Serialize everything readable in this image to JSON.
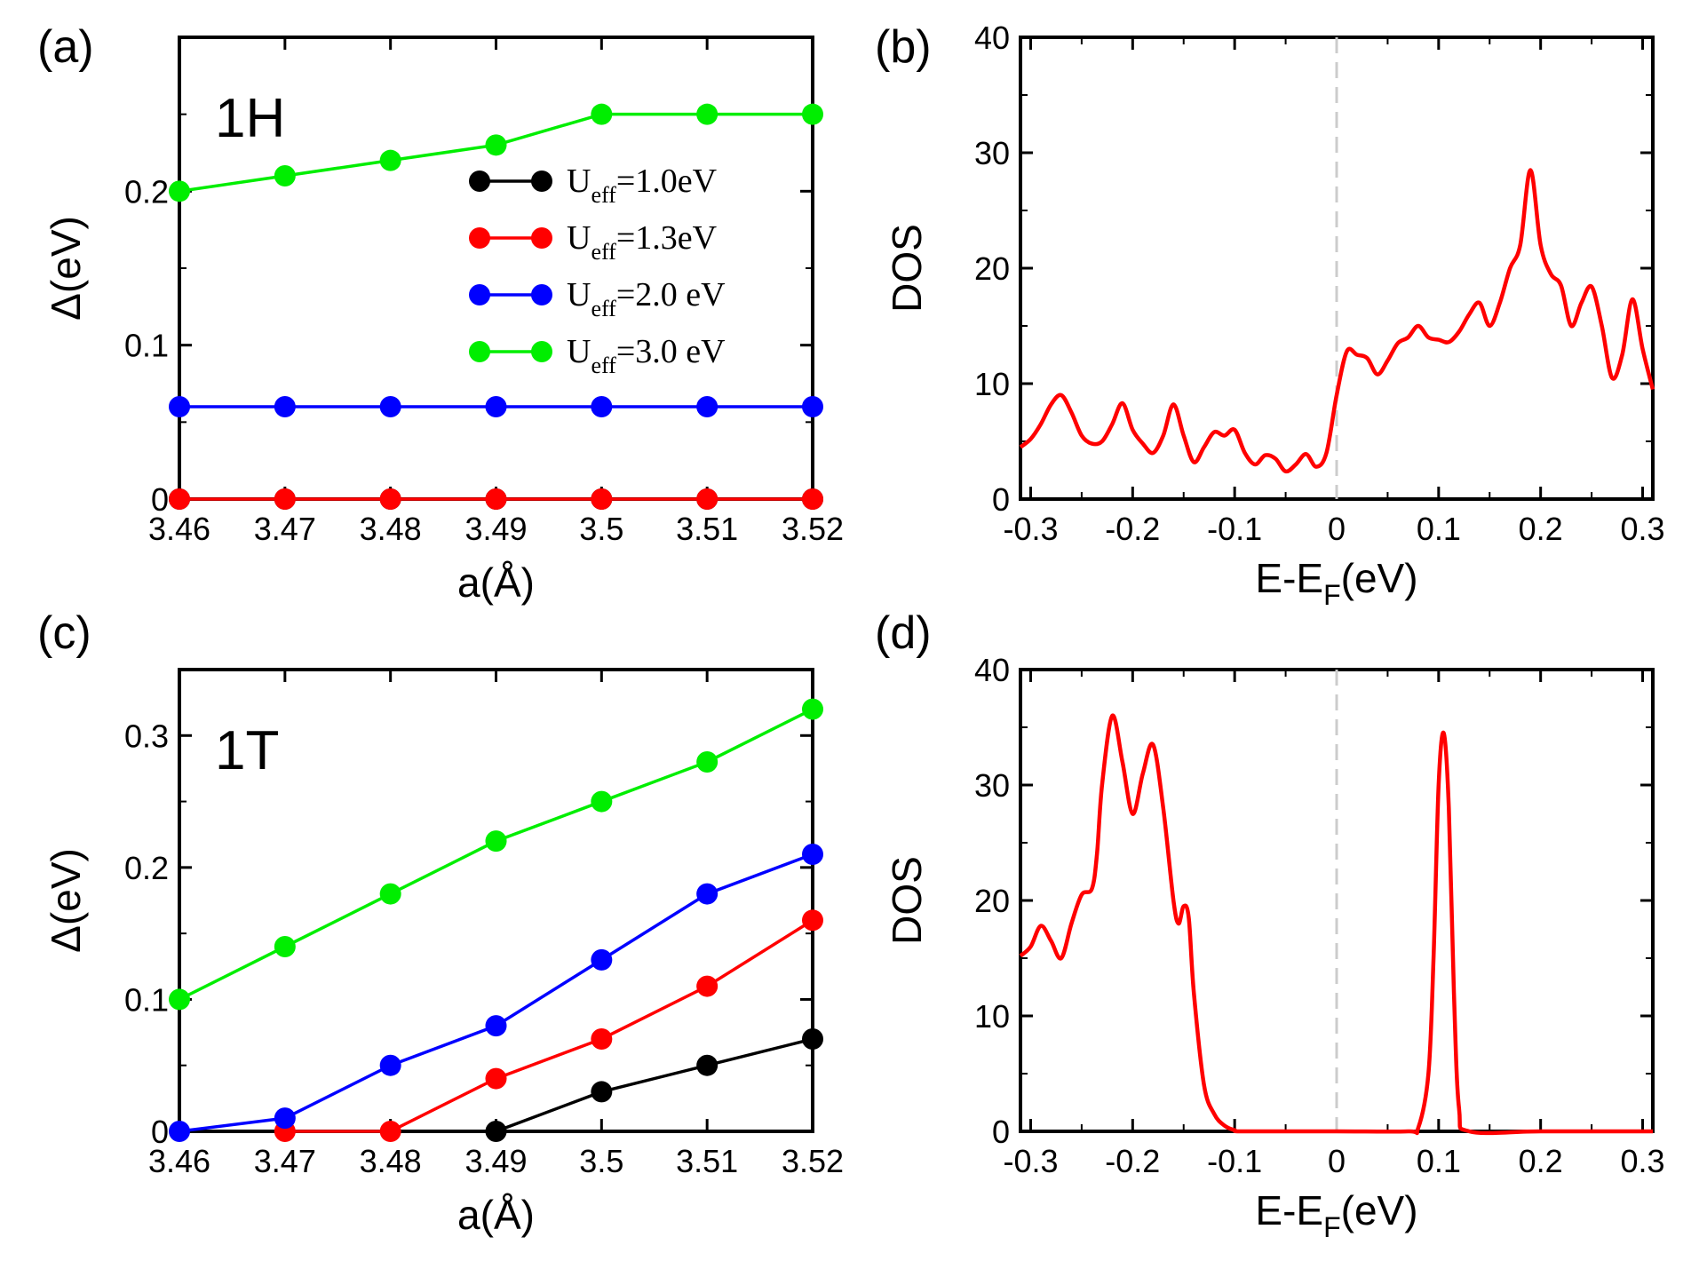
{
  "figure": {
    "panels": [
      "(a)",
      "(b)",
      "(c)",
      "(d)"
    ]
  },
  "chart_data": [
    {
      "id": "a",
      "type": "line",
      "panel_label": "(a)",
      "phase_label": "1H",
      "xlabel": "a(Å)",
      "ylabel": "Δ(eV)",
      "xlim": [
        3.46,
        3.52
      ],
      "ylim": [
        0,
        0.3
      ],
      "xticks": [
        3.46,
        3.47,
        3.48,
        3.49,
        3.5,
        3.51,
        3.52
      ],
      "xtick_labels": [
        "3.46",
        "3.47",
        "3.48",
        "3.49",
        "3.5",
        "3.51",
        "3.52"
      ],
      "yticks": [
        0,
        0.1,
        0.2
      ],
      "ytick_labels": [
        "0",
        "0.1",
        "0.2"
      ],
      "x": [
        3.46,
        3.47,
        3.48,
        3.49,
        3.5,
        3.51,
        3.52
      ],
      "series": [
        {
          "name": "U_eff=1.0eV",
          "legend_main": "U",
          "legend_sub": "eff",
          "legend_tail": "=1.0eV",
          "color": "#000000",
          "values": [
            0,
            0,
            0,
            0,
            0,
            0,
            0
          ]
        },
        {
          "name": "U_eff=1.3eV",
          "legend_main": "U",
          "legend_sub": "eff",
          "legend_tail": "=1.3eV",
          "color": "#ff0000",
          "values": [
            0,
            0,
            0,
            0,
            0,
            0,
            0
          ]
        },
        {
          "name": "U_eff=2.0 eV",
          "legend_main": "U",
          "legend_sub": "eff",
          "legend_tail": "=2.0 eV",
          "color": "#0000ff",
          "values": [
            0.06,
            0.06,
            0.06,
            0.06,
            0.06,
            0.06,
            0.06
          ]
        },
        {
          "name": "U_eff=3.0 eV",
          "legend_main": "U",
          "legend_sub": "eff",
          "legend_tail": "=3.0 eV",
          "color": "#00ee00",
          "values": [
            0.2,
            0.21,
            0.22,
            0.23,
            0.25,
            0.25,
            0.25
          ]
        }
      ],
      "legend_position": "center-right"
    },
    {
      "id": "b",
      "type": "line",
      "panel_label": "(b)",
      "xlabel_main": "E-E",
      "xlabel_sub": "F",
      "xlabel_tail": "(eV)",
      "ylabel": "DOS",
      "xlim": [
        -0.31,
        0.31
      ],
      "ylim": [
        0,
        40
      ],
      "xticks": [
        -0.3,
        -0.2,
        -0.1,
        0,
        0.1,
        0.2,
        0.3
      ],
      "xtick_labels": [
        "-0.3",
        "-0.2",
        "-0.1",
        "0",
        "0.1",
        "0.2",
        "0.3"
      ],
      "yticks": [
        0,
        10,
        20,
        30,
        40
      ],
      "ytick_labels": [
        "0",
        "10",
        "20",
        "30",
        "40"
      ],
      "fermi_line_x": 0,
      "series": [
        {
          "name": "DOS",
          "color": "#ff0000",
          "x": [
            -0.31,
            -0.3,
            -0.29,
            -0.28,
            -0.27,
            -0.26,
            -0.25,
            -0.24,
            -0.23,
            -0.22,
            -0.21,
            -0.2,
            -0.19,
            -0.18,
            -0.17,
            -0.16,
            -0.15,
            -0.14,
            -0.13,
            -0.12,
            -0.11,
            -0.1,
            -0.09,
            -0.08,
            -0.07,
            -0.06,
            -0.05,
            -0.04,
            -0.03,
            -0.02,
            -0.01,
            0,
            0.01,
            0.02,
            0.03,
            0.04,
            0.05,
            0.06,
            0.07,
            0.08,
            0.09,
            0.1,
            0.11,
            0.12,
            0.13,
            0.14,
            0.15,
            0.16,
            0.17,
            0.18,
            0.19,
            0.2,
            0.21,
            0.22,
            0.23,
            0.24,
            0.25,
            0.26,
            0.27,
            0.28,
            0.29,
            0.3,
            0.31
          ],
          "values": [
            4.5,
            5.2,
            6.5,
            8.2,
            9.0,
            7.5,
            5.5,
            4.8,
            5.0,
            6.5,
            8.3,
            6.0,
            4.8,
            4.0,
            5.5,
            8.2,
            5.5,
            3.2,
            4.5,
            5.8,
            5.5,
            6.0,
            4.0,
            3.0,
            3.8,
            3.5,
            2.4,
            3.0,
            3.9,
            2.8,
            4.0,
            9.0,
            12.8,
            12.5,
            12.2,
            10.8,
            12.0,
            13.5,
            14.0,
            15.0,
            14.0,
            13.8,
            13.6,
            14.5,
            16.0,
            17.0,
            15.0,
            17.0,
            20.0,
            22.0,
            28.5,
            22.0,
            19.5,
            18.5,
            15.0,
            17.0,
            18.4,
            15.0,
            10.5,
            12.5,
            17.3,
            13.0,
            9.5
          ]
        }
      ]
    },
    {
      "id": "c",
      "type": "line",
      "panel_label": "(c)",
      "phase_label": "1T",
      "xlabel": "a(Å)",
      "ylabel": "Δ(eV)",
      "xlim": [
        3.46,
        3.52
      ],
      "ylim": [
        0,
        0.35
      ],
      "xticks": [
        3.46,
        3.47,
        3.48,
        3.49,
        3.5,
        3.51,
        3.52
      ],
      "xtick_labels": [
        "3.46",
        "3.47",
        "3.48",
        "3.49",
        "3.5",
        "3.51",
        "3.52"
      ],
      "yticks": [
        0,
        0.1,
        0.2,
        0.3
      ],
      "ytick_labels": [
        "0",
        "0.1",
        "0.2",
        "0.3"
      ],
      "x": [
        3.46,
        3.47,
        3.48,
        3.49,
        3.5,
        3.51,
        3.52
      ],
      "series": [
        {
          "name": "U_eff=1.0eV",
          "color": "#000000",
          "x_subset_start": 3,
          "values": [
            null,
            null,
            null,
            0,
            0.03,
            0.05,
            0.07
          ]
        },
        {
          "name": "U_eff=1.3eV",
          "color": "#ff0000",
          "values": [
            null,
            0,
            0,
            0.04,
            0.07,
            0.11,
            0.16
          ]
        },
        {
          "name": "U_eff=2.0 eV",
          "color": "#0000ff",
          "values": [
            0,
            0.01,
            0.05,
            0.08,
            0.13,
            0.18,
            0.21
          ]
        },
        {
          "name": "U_eff=3.0 eV",
          "color": "#00ee00",
          "values": [
            0.1,
            0.14,
            0.18,
            0.22,
            0.25,
            0.28,
            0.32
          ]
        }
      ]
    },
    {
      "id": "d",
      "type": "line",
      "panel_label": "(d)",
      "xlabel_main": "E-E",
      "xlabel_sub": "F",
      "xlabel_tail": "(eV)",
      "ylabel": "DOS",
      "xlim": [
        -0.31,
        0.31
      ],
      "ylim": [
        0,
        40
      ],
      "xticks": [
        -0.3,
        -0.2,
        -0.1,
        0,
        0.1,
        0.2,
        0.3
      ],
      "xtick_labels": [
        "-0.3",
        "-0.2",
        "-0.1",
        "0",
        "0.1",
        "0.2",
        "0.3"
      ],
      "yticks": [
        0,
        10,
        20,
        30,
        40
      ],
      "ytick_labels": [
        "0",
        "10",
        "20",
        "30",
        "40"
      ],
      "fermi_line_x": 0,
      "series": [
        {
          "name": "DOS",
          "color": "#ff0000",
          "x": [
            -0.31,
            -0.3,
            -0.29,
            -0.28,
            -0.27,
            -0.26,
            -0.25,
            -0.24,
            -0.235,
            -0.23,
            -0.22,
            -0.21,
            -0.2,
            -0.19,
            -0.18,
            -0.17,
            -0.16,
            -0.155,
            -0.15,
            -0.145,
            -0.14,
            -0.13,
            -0.12,
            -0.11,
            -0.1,
            -0.09,
            0.0,
            0.07,
            0.08,
            0.09,
            0.095,
            0.1,
            0.105,
            0.11,
            0.115,
            0.12,
            0.13,
            0.2,
            0.31
          ],
          "values": [
            15.2,
            16.0,
            17.8,
            16.5,
            15.0,
            18.0,
            20.5,
            21.0,
            24.0,
            30.0,
            36.0,
            32.0,
            27.5,
            31.0,
            33.5,
            28.0,
            20.0,
            18.0,
            19.5,
            18.5,
            12.0,
            4.0,
            1.5,
            0.5,
            0.1,
            0.0,
            0.0,
            0.0,
            0.3,
            5.0,
            15.0,
            30.0,
            34.5,
            28.0,
            12.0,
            2.0,
            0.0,
            0.0,
            0.0
          ]
        }
      ]
    }
  ]
}
